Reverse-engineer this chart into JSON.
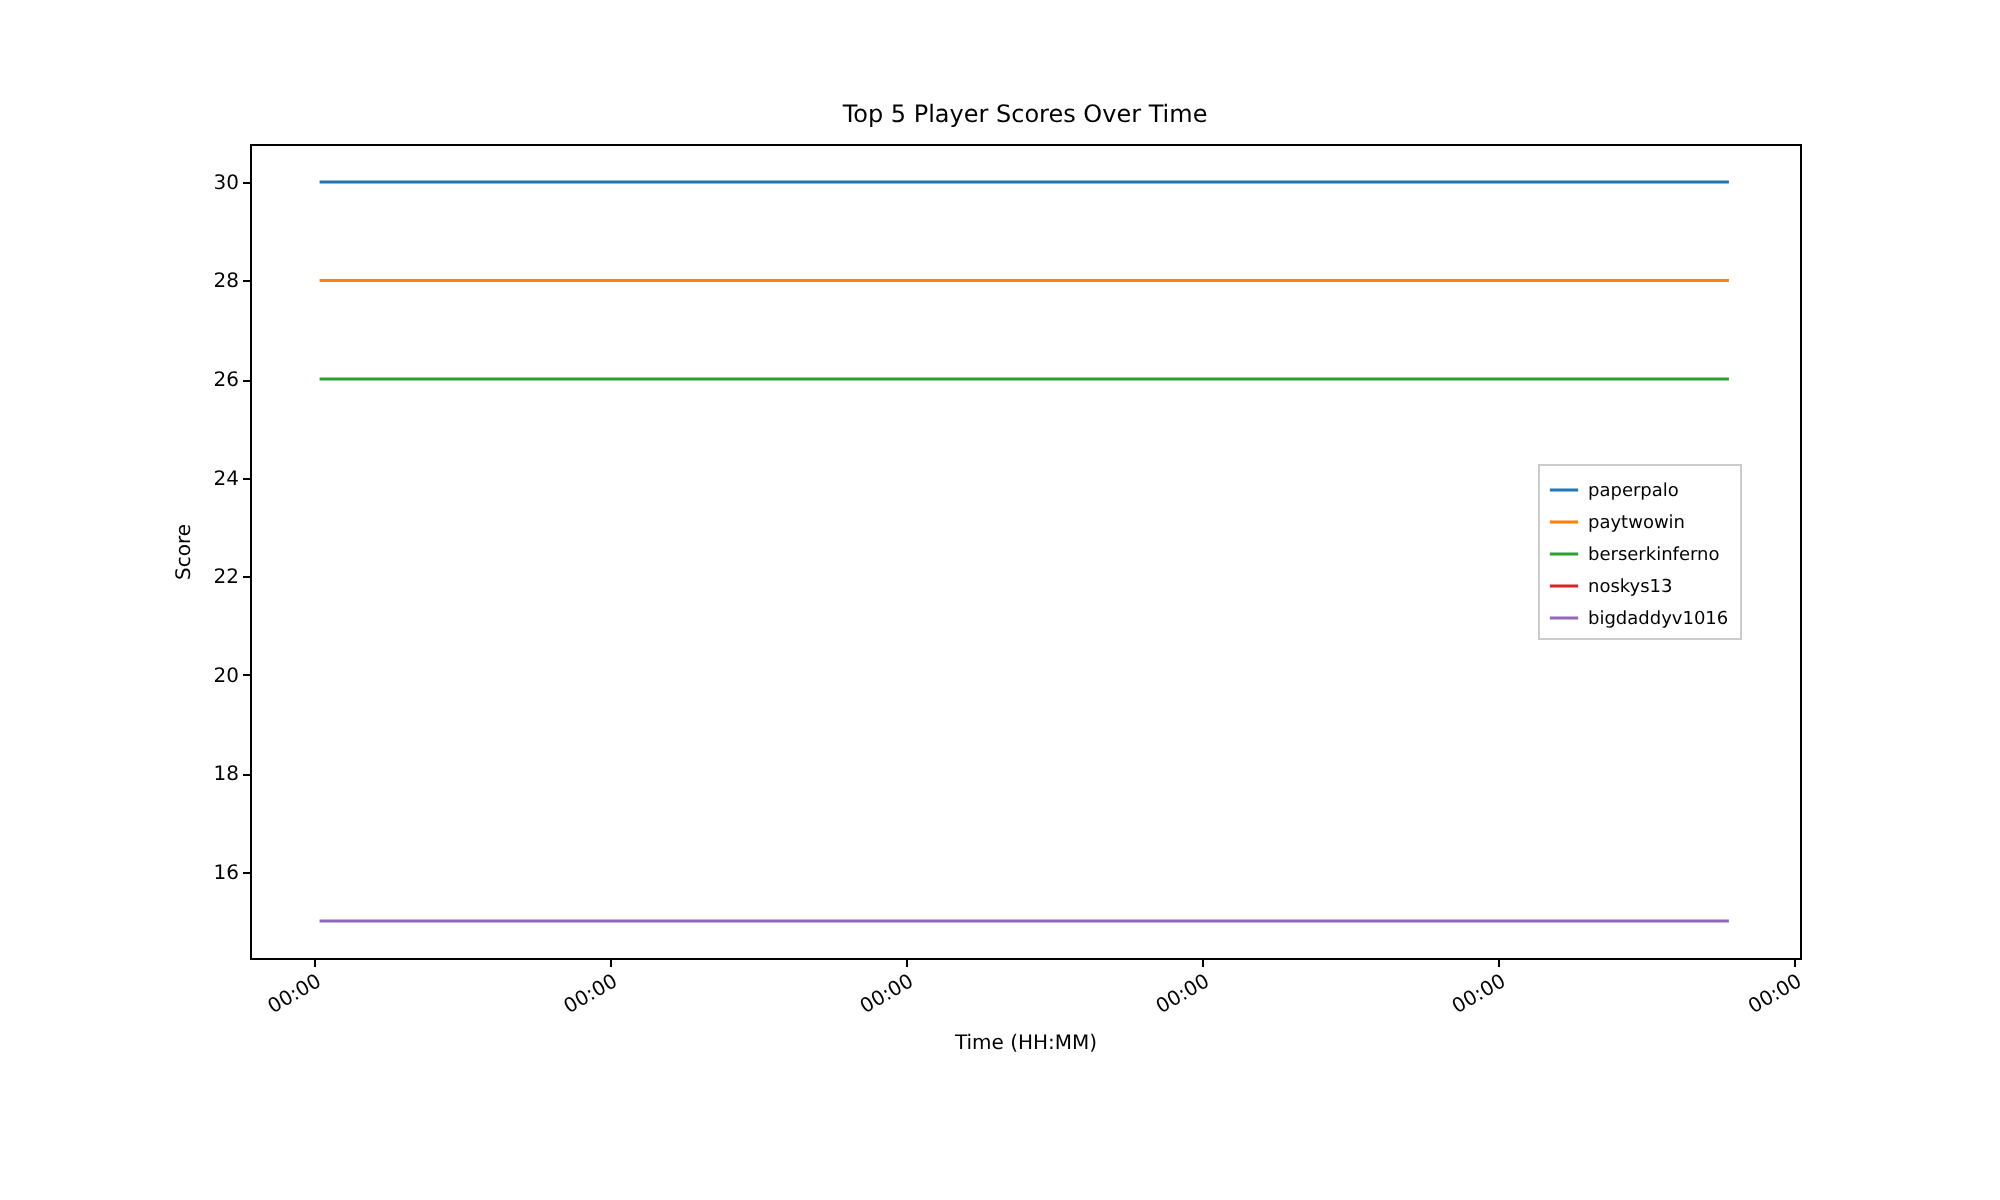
{
  "chart_data": {
    "type": "line",
    "title": "Top 5 Player Scores Over Time",
    "xlabel": "Time (HH:MM)",
    "ylabel": "Score",
    "x": [
      4e-05,
      0.00956
    ],
    "series": [
      {
        "name": "paperpalo",
        "color": "#1f77b4",
        "values": [
          30,
          30
        ]
      },
      {
        "name": "paytwowin",
        "color": "#ff7f0e",
        "values": [
          28,
          28
        ]
      },
      {
        "name": "berserkinferno",
        "color": "#2ca02c",
        "values": [
          26,
          26
        ]
      },
      {
        "name": "noskys13",
        "color": "#d62728",
        "values": [
          null,
          null
        ]
      },
      {
        "name": "bigdaddyv1016",
        "color": "#9467bd",
        "values": [
          15,
          15
        ]
      }
    ],
    "xlim": [
      -0.00043,
      0.01004
    ],
    "xticks": [
      {
        "value": 0,
        "label": "00:00"
      },
      {
        "value": 0.002,
        "label": "00:00"
      },
      {
        "value": 0.004,
        "label": "00:00"
      },
      {
        "value": 0.006,
        "label": "00:00"
      },
      {
        "value": 0.008,
        "label": "00:00"
      },
      {
        "value": 0.01,
        "label": "00:00"
      }
    ],
    "ylim": [
      14.25,
      30.77
    ],
    "yticks": [
      16,
      18,
      20,
      22,
      24,
      26,
      28,
      30
    ],
    "grid": false,
    "legend": "right",
    "marker": "none",
    "line_style": "solid"
  }
}
